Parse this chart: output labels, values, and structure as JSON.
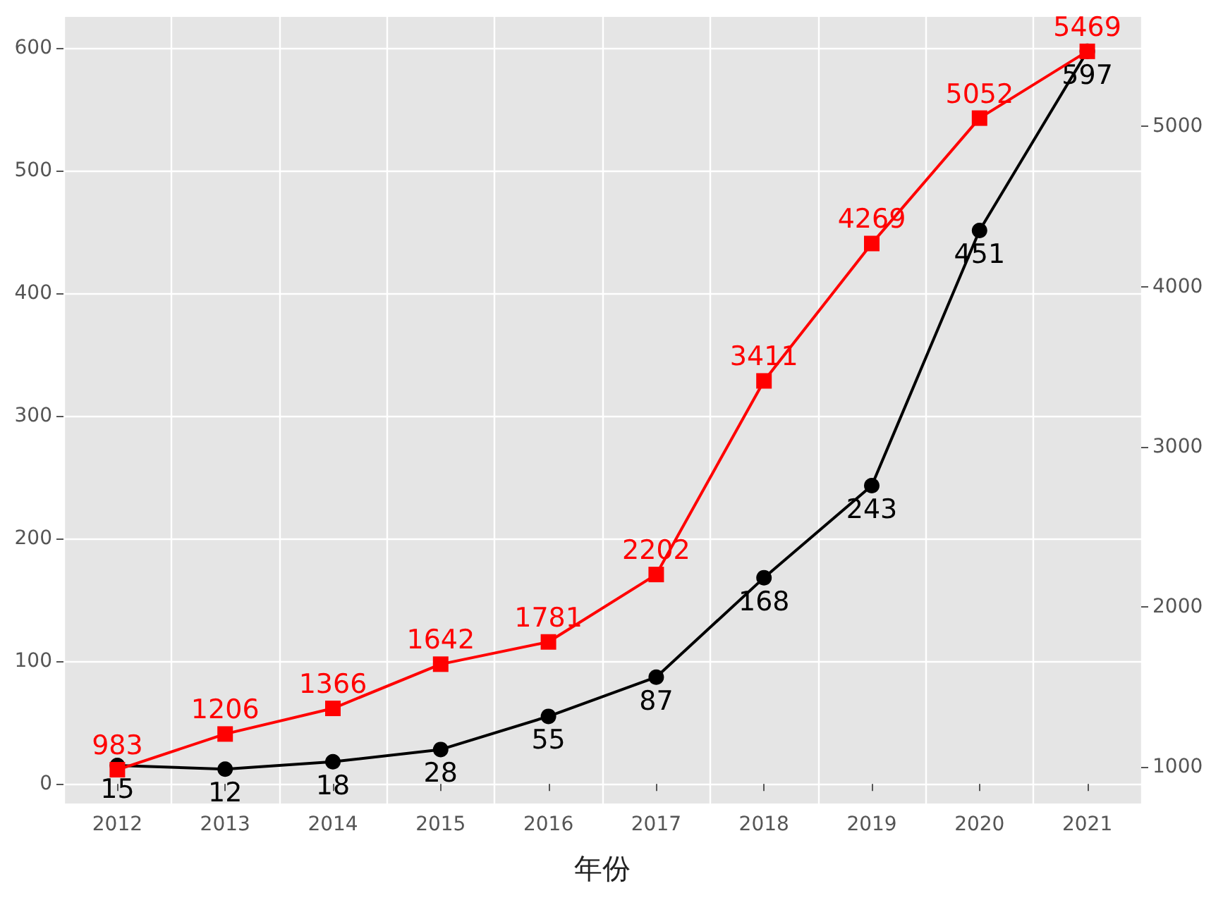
{
  "chart_data": {
    "type": "line",
    "xlabel": "年份",
    "categories": [
      "2012",
      "2013",
      "2014",
      "2015",
      "2016",
      "2017",
      "2018",
      "2019",
      "2020",
      "2021"
    ],
    "series": [
      {
        "color": "#000000",
        "marker": "circle",
        "values": [
          15,
          12,
          18,
          28,
          55,
          87,
          168,
          243,
          451,
          597
        ]
      },
      {
        "color": "#ff0000",
        "marker": "square",
        "axis": "y2",
        "values": [
          983,
          1206,
          1366,
          1642,
          1781,
          2202,
          3411,
          4269,
          5052,
          5469
        ]
      }
    ],
    "ylim": [
      -16,
      625
    ],
    "yticks": [
      0,
      100,
      200,
      300,
      400,
      500,
      600
    ],
    "y2lim": [
      772,
      5684
    ],
    "y2ticks": [
      1000,
      2000,
      3000,
      4000,
      5000
    ],
    "grid": true,
    "data_labels": true,
    "line_style": "solid"
  }
}
